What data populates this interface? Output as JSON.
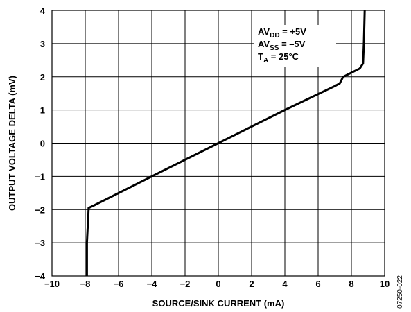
{
  "chart_data": {
    "type": "line",
    "title": "",
    "xlabel": "SOURCE/SINK CURRENT (mA)",
    "ylabel": "OUTPUT VOLTAGE DELTA (mV)",
    "xlim": [
      -10,
      10
    ],
    "ylim": [
      -4,
      4
    ],
    "xticks": [
      "−10",
      "−8",
      "−6",
      "−4",
      "−2",
      "0",
      "2",
      "4",
      "6",
      "8",
      "10"
    ],
    "yticks": [
      "4",
      "3",
      "2",
      "1",
      "0",
      "−1",
      "−2",
      "−3",
      "−4"
    ],
    "grid": true,
    "annotations": [
      {
        "base": "AV",
        "sub": "DD",
        "rest": " = +5V"
      },
      {
        "base": "AV",
        "sub": "SS",
        "rest": " = –5V"
      },
      {
        "base": "T",
        "sub": "A",
        "rest": " = 25°C"
      }
    ],
    "figure_id": "07250-022",
    "series": [
      {
        "x": [
          -7.9,
          -7.9,
          -7.8,
          -7.8,
          -7.5,
          -4.0,
          0.0,
          4.0,
          7.0,
          7.3,
          7.5,
          8.5,
          8.7,
          8.75,
          8.8
        ],
        "y": [
          -4.0,
          -3.0,
          -2.0,
          -1.95,
          -1.88,
          -1.0,
          0.0,
          1.0,
          1.72,
          1.8,
          2.0,
          2.25,
          2.4,
          3.0,
          4.0
        ]
      }
    ]
  }
}
